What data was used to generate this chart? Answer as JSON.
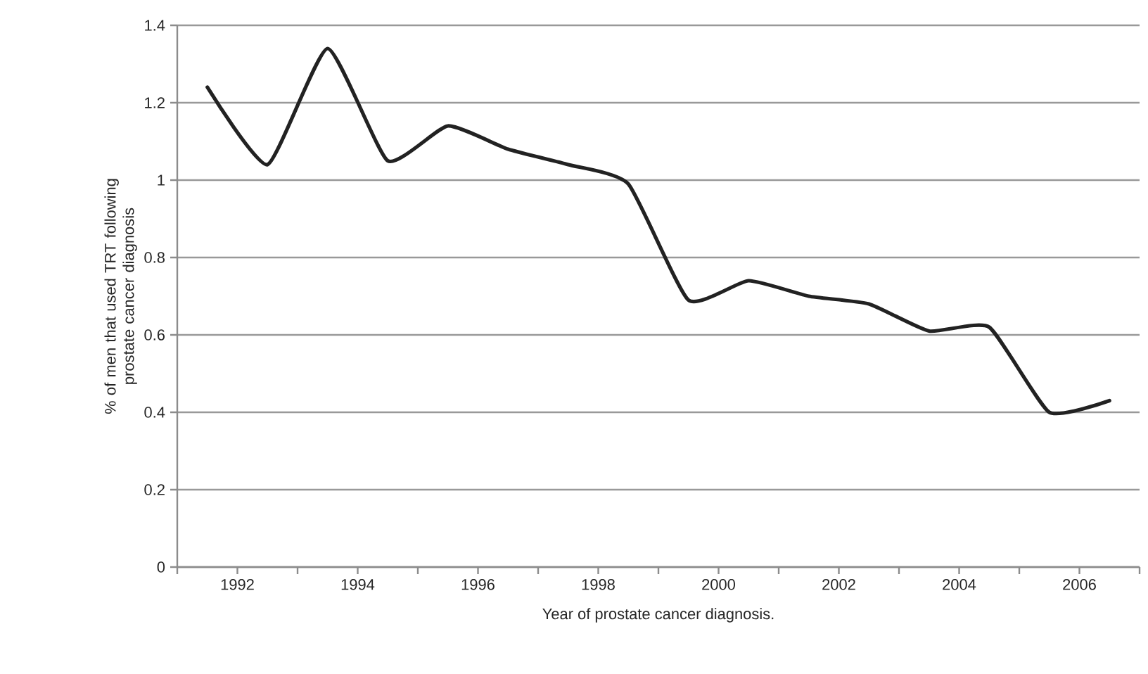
{
  "chart_data": {
    "type": "line",
    "xlabel": "Year of prostate cancer diagnosis.",
    "ylabel": "% of men that used TRT following prostate cancer diagnosis",
    "x": [
      1991.5,
      1992.5,
      1993.5,
      1994.5,
      1995.5,
      1996.5,
      1997.5,
      1998.5,
      1999.5,
      2000.5,
      2001.5,
      2002.5,
      2003.5,
      2004.5,
      2005.5,
      2006.5
    ],
    "series": [
      {
        "color": "#222222",
        "values": [
          1.24,
          1.04,
          1.34,
          1.05,
          1.14,
          1.08,
          1.04,
          0.99,
          0.69,
          0.74,
          0.7,
          0.68,
          0.61,
          0.62,
          0.4,
          0.43
        ]
      }
    ],
    "xlim": [
      1991,
      2007
    ],
    "xticks": [
      {
        "value": 1991,
        "label": null
      },
      1992,
      {
        "value": 1993,
        "label": null
      },
      1994,
      {
        "value": 1995,
        "label": null
      },
      1996,
      {
        "value": 1997,
        "label": null
      },
      1998,
      {
        "value": 1999,
        "label": null
      },
      2000,
      {
        "value": 2001,
        "label": null
      },
      2002,
      {
        "value": 2003,
        "label": null
      },
      2004,
      {
        "value": 2005,
        "label": null
      },
      2006,
      {
        "value": 2007,
        "label": null
      }
    ],
    "ylim": [
      0,
      1.4
    ],
    "yticks": [
      0,
      0.2,
      0.4,
      0.6,
      0.8,
      1,
      1.2,
      1.4
    ],
    "grid": "y",
    "legend": false,
    "marker": "none",
    "line_style": "solid"
  }
}
